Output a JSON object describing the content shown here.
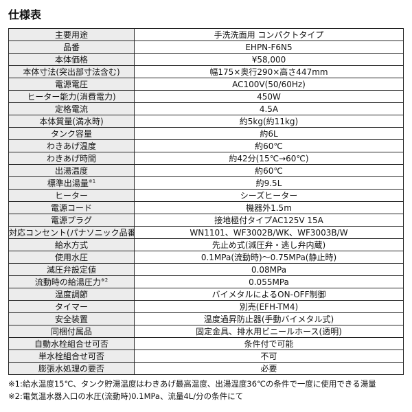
{
  "title": "仕様表",
  "rows": [
    {
      "label": "主要用途",
      "note": "",
      "value": "手洗洗面用 コンパクトタイプ"
    },
    {
      "label": "品番",
      "note": "",
      "value": "EHPN-F6N5"
    },
    {
      "label": "本体価格",
      "note": "",
      "value": "¥58,000"
    },
    {
      "label": "本体寸法(突出部寸法含む)",
      "note": "",
      "value": "幅175×奥行290×高さ447mm"
    },
    {
      "label": "電源電圧",
      "note": "",
      "value": "AC100V(50/60Hz)"
    },
    {
      "label": "ヒーター能力(消費電力)",
      "note": "",
      "value": "450W"
    },
    {
      "label": "定格電流",
      "note": "",
      "value": "4.5A"
    },
    {
      "label": "本体質量(満水時)",
      "note": "",
      "value": "約5kg(約11kg)"
    },
    {
      "label": "タンク容量",
      "note": "",
      "value": "約6L"
    },
    {
      "label": "わきあげ温度",
      "note": "",
      "value": "約60℃"
    },
    {
      "label": "わきあげ時間",
      "note": "",
      "value": "約42分(15℃→60℃)"
    },
    {
      "label": "出湯温度",
      "note": "",
      "value": "約60℃"
    },
    {
      "label": "標準出湯量",
      "note": "※1",
      "value": "約9.5L"
    },
    {
      "label": "ヒーター",
      "note": "",
      "value": "シーズヒーター"
    },
    {
      "label": "電源コード",
      "note": "",
      "value": "機器外1.5m"
    },
    {
      "label": "電源プラグ",
      "note": "",
      "value": "接地極付タイプAC125V 15A"
    },
    {
      "label": "対応コンセント(パナソニック品番)",
      "note": "",
      "value": "WN1101、WF3002B/WK、WF3003B/W"
    },
    {
      "label": "給水方式",
      "note": "",
      "value": "先止め式(減圧弁・逃し弁内蔵)"
    },
    {
      "label": "使用水圧",
      "note": "",
      "value": "0.1MPa(流動時)～0.75MPa(静止時)"
    },
    {
      "label": "減圧弁設定値",
      "note": "",
      "value": "0.08MPa"
    },
    {
      "label": "流動時の給湯圧力",
      "note": "※2",
      "value": "0.055MPa"
    },
    {
      "label": "温度調節",
      "note": "",
      "value": "バイメタルによるON-OFF制御"
    },
    {
      "label": "タイマー",
      "note": "",
      "value": "別売(EFH-TM4)"
    },
    {
      "label": "安全装置",
      "note": "",
      "value": "温度過昇防止器(手動バイメタル式)"
    },
    {
      "label": "同梱付属品",
      "note": "",
      "value": "固定金具、排水用ビニールホース(透明)"
    },
    {
      "label": "自動水栓組合せ可否",
      "note": "",
      "value": "条件付で可能"
    },
    {
      "label": "単水栓組合せ可否",
      "note": "",
      "value": "不可"
    },
    {
      "label": "膨張水処理の要否",
      "note": "",
      "value": "必要"
    }
  ],
  "footnotes": [
    "※1:給水温度15℃、タンク貯湯温度はわきあげ最高温度、出湯温度36℃の条件で一度に使用できる湯量",
    "※2:電気温水器入口の水圧(流動時)0.1MPa、流量4L/分の条件にて"
  ]
}
